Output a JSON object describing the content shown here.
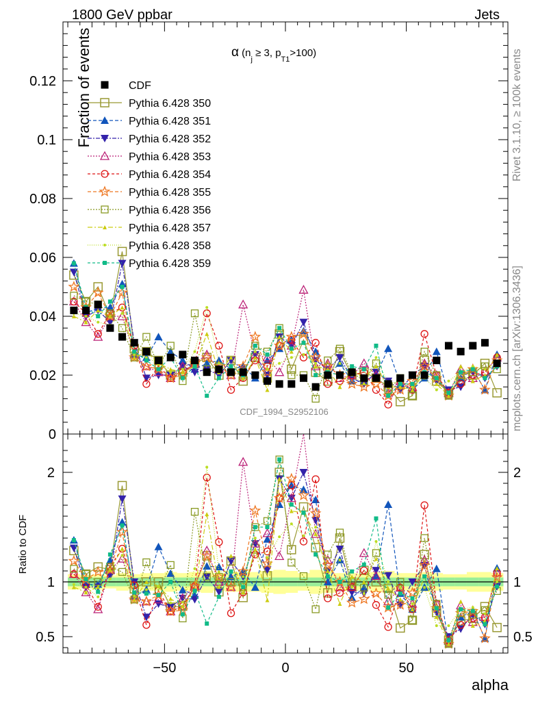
{
  "header": {
    "left": "1800 GeV ppbar",
    "right": "Jets",
    "right_side_top": "Rivet 3.1.10, ≥ 100k events",
    "right_side_bottom": "mcplots.cern.ch [arXiv:1306.3436]",
    "watermark": "CDF_1994_S2952106"
  },
  "chart_data": {
    "type": "scatter",
    "title_parts": {
      "sym": "α",
      "a": " (n",
      "sub_j": "j",
      "b": " ≥ 3, p",
      "sub_t": "T1",
      "c": ">100)"
    },
    "ylabel": "Fraction of events",
    "ratio_ylabel": "Ratio to CDF",
    "xlabel": "alpha",
    "xlim": [
      -92,
      92
    ],
    "ylim": [
      0,
      0.14
    ],
    "ratio_ylim": [
      0.35,
      2.35
    ],
    "x_ticks": [
      -50,
      0,
      50
    ],
    "y_ticks": [
      0,
      0.02,
      0.04,
      0.06,
      0.08,
      0.1,
      0.12
    ],
    "ratio_ticks": [
      0.5,
      1,
      2
    ],
    "x": [
      -87.5,
      -82.5,
      -77.5,
      -72.5,
      -67.5,
      -62.5,
      -57.5,
      -52.5,
      -47.5,
      -42.5,
      -37.5,
      -32.5,
      -27.5,
      -22.5,
      -17.5,
      -12.5,
      -7.5,
      -2.5,
      2.5,
      7.5,
      12.5,
      17.5,
      22.5,
      27.5,
      32.5,
      37.5,
      42.5,
      47.5,
      52.5,
      57.5,
      62.5,
      67.5,
      72.5,
      77.5,
      82.5,
      87.5
    ],
    "cdf": {
      "name": "CDF",
      "color": "#000000",
      "values": [
        0.042,
        0.042,
        0.044,
        0.036,
        0.033,
        0.031,
        0.028,
        0.025,
        0.026,
        0.027,
        0.025,
        0.021,
        0.022,
        0.021,
        0.021,
        0.02,
        0.018,
        0.017,
        0.017,
        0.019,
        0.016,
        0.02,
        0.02,
        0.021,
        0.019,
        0.019,
        0.017,
        0.019,
        0.02,
        0.02,
        0.025,
        0.03,
        0.028,
        0.03,
        0.031,
        0.024
      ],
      "band_inner": [
        0.04,
        0.04,
        0.04,
        0.04,
        0.04,
        0.04,
        0.04,
        0.04,
        0.04,
        0.04,
        0.04,
        0.04,
        0.04,
        0.04,
        0.04,
        0.04,
        0.04,
        0.04,
        0.04,
        0.04,
        0.04,
        0.04,
        0.04,
        0.04,
        0.04,
        0.04,
        0.04,
        0.04,
        0.04,
        0.04,
        0.04,
        0.04,
        0.04,
        0.04,
        0.04,
        0.04
      ],
      "band_outer": [
        0.07,
        0.06,
        0.07,
        0.06,
        0.08,
        0.07,
        0.08,
        0.08,
        0.09,
        0.08,
        0.09,
        0.1,
        0.08,
        0.09,
        0.09,
        0.09,
        0.1,
        0.11,
        0.1,
        0.08,
        0.11,
        0.1,
        0.08,
        0.08,
        0.07,
        0.09,
        0.1,
        0.08,
        0.08,
        0.09,
        0.08,
        0.07,
        0.07,
        0.09,
        0.09,
        0.08
      ]
    },
    "series": [
      {
        "name": "Pythia 6.428 350",
        "color": "#999933",
        "marker": "square-open",
        "dash": "",
        "values": [
          0.054,
          0.045,
          0.05,
          0.04,
          0.062,
          0.029,
          0.028,
          0.025,
          0.02,
          0.021,
          0.024,
          0.026,
          0.02,
          0.025,
          0.018,
          0.026,
          0.019,
          0.034,
          0.022,
          0.032,
          0.021,
          0.018,
          0.028,
          0.02,
          0.021,
          0.019,
          0.016,
          0.011,
          0.013,
          0.025,
          0.018,
          0.014,
          0.018,
          0.02,
          0.024,
          0.014
        ]
      },
      {
        "name": "Pythia 6.428 351",
        "color": "#1155bb",
        "marker": "triangle-up",
        "dash": "5,3",
        "values": [
          0.058,
          0.041,
          0.043,
          0.043,
          0.051,
          0.027,
          0.026,
          0.033,
          0.028,
          0.025,
          0.022,
          0.024,
          0.025,
          0.022,
          0.023,
          0.019,
          0.025,
          0.029,
          0.032,
          0.035,
          0.028,
          0.02,
          0.024,
          0.018,
          0.018,
          0.02,
          0.029,
          0.017,
          0.015,
          0.019,
          0.028,
          0.013,
          0.019,
          0.022,
          0.015,
          0.027
        ]
      },
      {
        "name": "Pythia 6.428 352",
        "color": "#3322aa",
        "marker": "triangle-down",
        "dash": "6,2,2,2",
        "values": [
          0.055,
          0.04,
          0.042,
          0.038,
          0.058,
          0.031,
          0.019,
          0.02,
          0.02,
          0.023,
          0.021,
          0.022,
          0.02,
          0.025,
          0.022,
          0.027,
          0.02,
          0.033,
          0.03,
          0.038,
          0.025,
          0.022,
          0.026,
          0.019,
          0.017,
          0.021,
          0.018,
          0.015,
          0.02,
          0.023,
          0.018,
          0.015,
          0.016,
          0.021,
          0.019,
          0.023
        ]
      },
      {
        "name": "Pythia 6.428 353",
        "color": "#bb2277",
        "marker": "triangle-open",
        "dash": "2,2",
        "values": [
          0.045,
          0.038,
          0.033,
          0.04,
          0.04,
          0.027,
          0.023,
          0.021,
          0.019,
          0.023,
          0.024,
          0.027,
          0.022,
          0.02,
          0.044,
          0.027,
          0.026,
          0.021,
          0.03,
          0.049,
          0.023,
          0.024,
          0.019,
          0.02,
          0.024,
          0.02,
          0.014,
          0.018,
          0.016,
          0.024,
          0.02,
          0.014,
          0.022,
          0.019,
          0.021,
          0.026
        ]
      },
      {
        "name": "Pythia 6.428 354",
        "color": "#dd1111",
        "marker": "circle-open",
        "dash": "4,3",
        "values": [
          0.045,
          0.041,
          0.034,
          0.041,
          0.043,
          0.03,
          0.017,
          0.023,
          0.019,
          0.021,
          0.024,
          0.041,
          0.03,
          0.015,
          0.019,
          0.025,
          0.023,
          0.03,
          0.032,
          0.026,
          0.031,
          0.017,
          0.018,
          0.02,
          0.021,
          0.015,
          0.01,
          0.018,
          0.015,
          0.034,
          0.02,
          0.014,
          0.017,
          0.02,
          0.021,
          0.026
        ]
      },
      {
        "name": "Pythia 6.428 355",
        "color": "#ee7722",
        "marker": "star",
        "dash": "5,3",
        "values": [
          0.05,
          0.043,
          0.048,
          0.04,
          0.048,
          0.026,
          0.023,
          0.022,
          0.019,
          0.02,
          0.024,
          0.026,
          0.023,
          0.02,
          0.023,
          0.033,
          0.021,
          0.03,
          0.033,
          0.034,
          0.026,
          0.023,
          0.02,
          0.017,
          0.016,
          0.017,
          0.013,
          0.015,
          0.018,
          0.023,
          0.019,
          0.013,
          0.02,
          0.022,
          0.015,
          0.025
        ]
      },
      {
        "name": "Pythia 6.428 356",
        "color": "#889922",
        "marker": "square-open-small",
        "dash": "2,2",
        "values": [
          0.047,
          0.045,
          0.044,
          0.041,
          0.036,
          0.026,
          0.033,
          0.023,
          0.03,
          0.018,
          0.041,
          0.022,
          0.023,
          0.021,
          0.02,
          0.03,
          0.028,
          0.036,
          0.02,
          0.02,
          0.012,
          0.025,
          0.029,
          0.021,
          0.018,
          0.024,
          0.015,
          0.019,
          0.013,
          0.028,
          0.02,
          0.013,
          0.02,
          0.021,
          0.023,
          0.022
        ]
      },
      {
        "name": "Pythia 6.428 357",
        "color": "#cccc11",
        "marker": "tri-small",
        "dash": "7,3,2,3",
        "values": [
          0.04,
          0.038,
          0.042,
          0.04,
          0.043,
          0.026,
          0.028,
          0.024,
          0.022,
          0.021,
          0.023,
          0.034,
          0.021,
          0.026,
          0.019,
          0.026,
          0.015,
          0.033,
          0.028,
          0.031,
          0.023,
          0.022,
          0.016,
          0.022,
          0.019,
          0.023,
          0.016,
          0.016,
          0.015,
          0.021,
          0.017,
          0.013,
          0.023,
          0.018,
          0.02,
          0.027
        ]
      },
      {
        "name": "Pythia 6.428 358",
        "color": "#bbdd22",
        "marker": "dot",
        "dash": "1,2",
        "values": [
          0.041,
          0.04,
          0.038,
          0.037,
          0.041,
          0.027,
          0.026,
          0.024,
          0.021,
          0.022,
          0.028,
          0.043,
          0.024,
          0.023,
          0.022,
          0.028,
          0.022,
          0.024,
          0.026,
          0.027,
          0.024,
          0.021,
          0.024,
          0.02,
          0.017,
          0.026,
          0.017,
          0.018,
          0.016,
          0.019,
          0.015,
          0.018,
          0.021,
          0.023,
          0.022,
          0.024
        ]
      },
      {
        "name": "Pythia 6.428 359",
        "color": "#11bb88",
        "marker": "square-small",
        "dash": "4,3",
        "values": [
          0.058,
          0.043,
          0.04,
          0.045,
          0.05,
          0.028,
          0.025,
          0.022,
          0.026,
          0.019,
          0.023,
          0.013,
          0.019,
          0.023,
          0.02,
          0.03,
          0.027,
          0.036,
          0.029,
          0.031,
          0.02,
          0.021,
          0.02,
          0.023,
          0.022,
          0.03,
          0.013,
          0.017,
          0.017,
          0.021,
          0.019,
          0.014,
          0.021,
          0.022,
          0.019,
          0.023
        ]
      }
    ]
  }
}
